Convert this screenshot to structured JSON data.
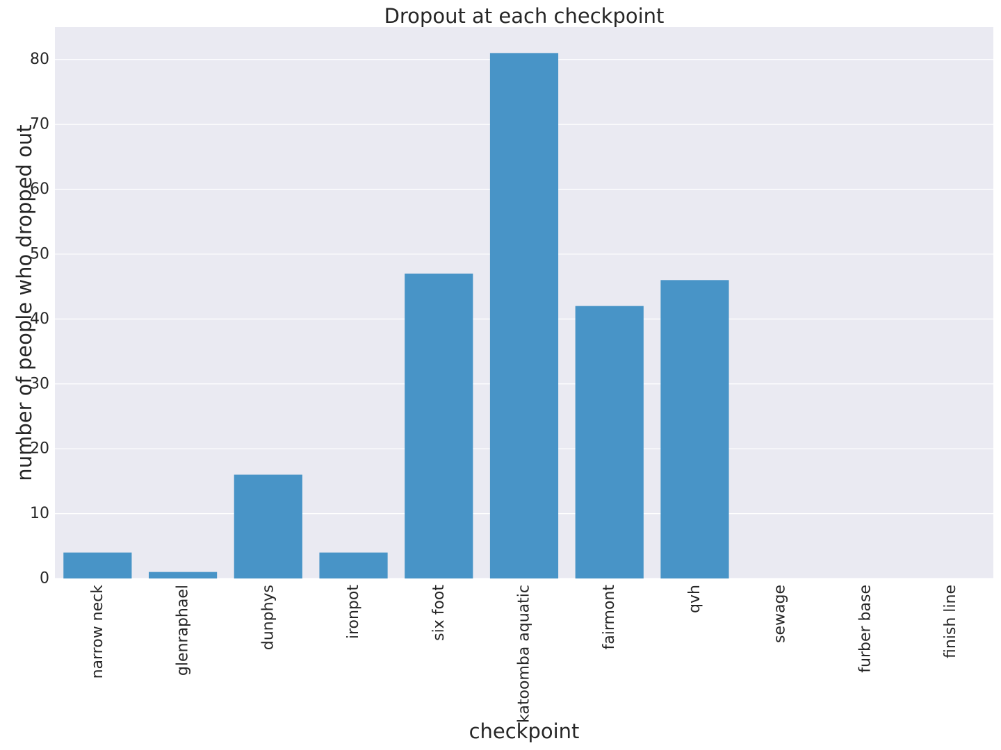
{
  "chart_data": {
    "type": "bar",
    "title": "Dropout at each checkpoint",
    "xlabel": "checkpoint",
    "ylabel": "number of people who dropped out",
    "categories": [
      "narrow neck",
      "glenraphael",
      "dunphys",
      "ironpot",
      "six foot",
      "katoomba aquatic",
      "fairmont",
      "qvh",
      "sewage",
      "furber base",
      "finish line"
    ],
    "values": [
      4,
      1,
      16,
      4,
      47,
      81,
      42,
      46,
      0,
      0,
      0
    ],
    "ylim": [
      0,
      85
    ],
    "yticks": [
      0,
      10,
      20,
      30,
      40,
      50,
      60,
      70,
      80
    ],
    "grid": true,
    "colors": {
      "bar": "#4894c7",
      "plot_background": "#eaeaf2",
      "grid": "#ffffff",
      "text": "#262626"
    }
  }
}
